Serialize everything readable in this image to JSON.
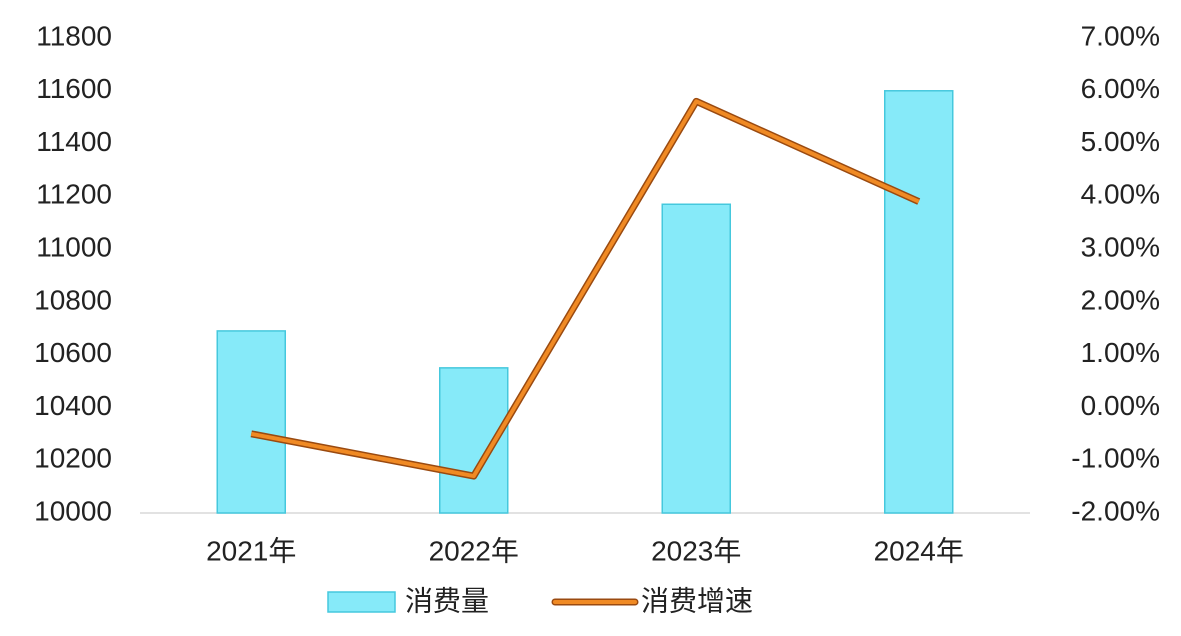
{
  "chart_data": {
    "type": "bar-line",
    "categories": [
      "2021年",
      "2022年",
      "2023年",
      "2024年"
    ],
    "series": [
      {
        "name": "消费量",
        "type": "bar",
        "color": "#86eaf9",
        "values": [
          10690,
          10550,
          11170,
          11600
        ]
      },
      {
        "name": "消费增速",
        "type": "line",
        "axis": "y2",
        "color": "#f08a24",
        "values": [
          -0.5,
          -1.3,
          5.8,
          3.9
        ]
      }
    ],
    "ylim": [
      10000,
      11800
    ],
    "yticks": [
      10000,
      10200,
      10400,
      10600,
      10800,
      11000,
      11200,
      11400,
      11600,
      11800
    ],
    "y2lim": [
      -2,
      7
    ],
    "y2ticks": [
      {
        "value": -2,
        "label": "-2.00%"
      },
      {
        "value": -1,
        "label": "-1.00%"
      },
      {
        "value": 0,
        "label": "0.00%"
      },
      {
        "value": 1,
        "label": "1.00%"
      },
      {
        "value": 2,
        "label": "2.00%"
      },
      {
        "value": 3,
        "label": "3.00%"
      },
      {
        "value": 4,
        "label": "4.00%"
      },
      {
        "value": 5,
        "label": "5.00%"
      },
      {
        "value": 6,
        "label": "6.00%"
      },
      {
        "value": 7,
        "label": "7.00%"
      }
    ],
    "legend": "bottom"
  }
}
